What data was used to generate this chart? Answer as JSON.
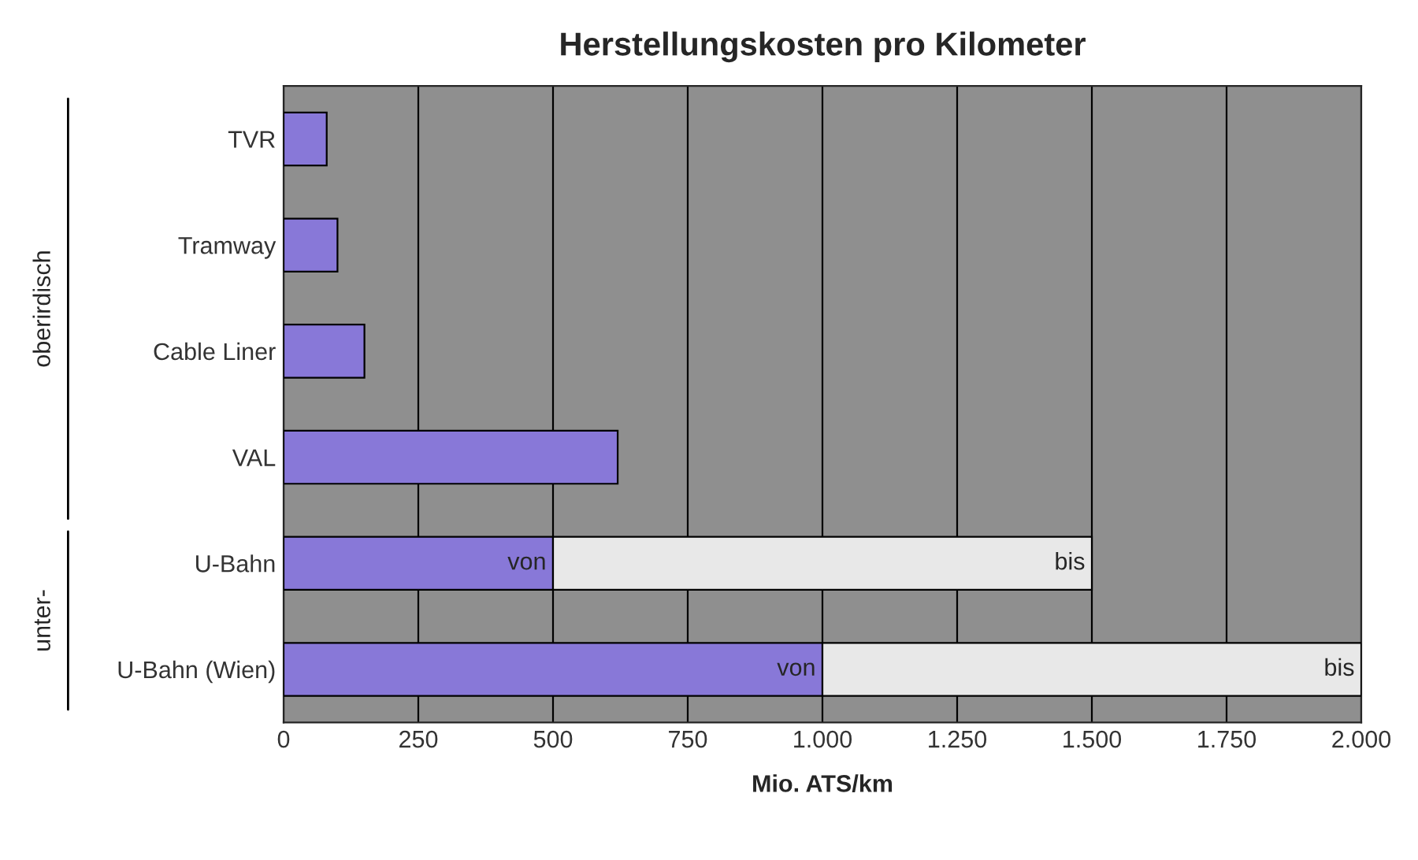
{
  "chart_data": {
    "type": "bar",
    "orientation": "horizontal",
    "stacked": true,
    "title": "Herstellungskosten pro Kilometer",
    "xlabel": "Mio. ATS/km",
    "categories": [
      "TVR",
      "Tramway",
      "Cable Liner",
      "VAL",
      "U-Bahn",
      "U-Bahn (Wien)"
    ],
    "series": [
      {
        "color": "#8878d8",
        "values": [
          80,
          100,
          150,
          620,
          500,
          1000
        ]
      },
      {
        "color": "#e8e8e8",
        "values": [
          null,
          null,
          null,
          null,
          1000,
          1000
        ]
      }
    ],
    "xlim": [
      0,
      2000
    ],
    "xticks": [
      0,
      250,
      500,
      750,
      {
        "value": 1000,
        "label": "1.000"
      },
      {
        "value": 1250,
        "label": "1.250"
      },
      {
        "value": 1500,
        "label": "1.500"
      },
      {
        "value": 1750,
        "label": "1.750"
      },
      {
        "value": 2000,
        "label": "2.000"
      }
    ],
    "grid": "x",
    "annotations": [
      {
        "text": "von",
        "x": 500,
        "y": "U-Bahn"
      },
      {
        "text": "bis",
        "x": 1500,
        "y": "U-Bahn"
      },
      {
        "text": "von",
        "x": 1000,
        "y": "U-Bahn (Wien)"
      },
      {
        "text": "bis",
        "x": 2000,
        "y": "U-Bahn (Wien)"
      },
      "oberirdisch",
      "unter-"
    ]
  }
}
